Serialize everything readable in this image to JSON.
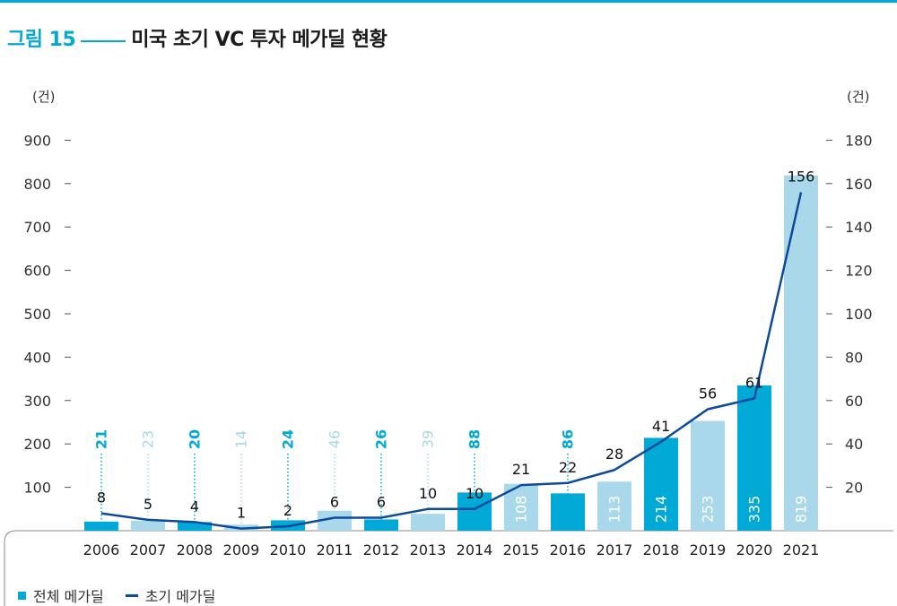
{
  "figure": {
    "label": "그림 15",
    "title": "미국 초기 VC 투자 메가딜 현황"
  },
  "colors": {
    "accent": "#00a9d6",
    "bar_dark": "#00a9d6",
    "bar_light": "#a8d8ea",
    "line": "#0d4a9a"
  },
  "legend": {
    "total_label": "전체 메가딜",
    "early_label": "초기 메가딜"
  },
  "chart_data": {
    "type": "bar+line",
    "categories": [
      "2006",
      "2007",
      "2008",
      "2009",
      "2010",
      "2011",
      "2012",
      "2013",
      "2014",
      "2015",
      "2016",
      "2017",
      "2018",
      "2019",
      "2020",
      "2021"
    ],
    "series": [
      {
        "name": "전체 메가딜",
        "axis": "left",
        "values": [
          21,
          23,
          20,
          14,
          24,
          46,
          26,
          39,
          88,
          108,
          86,
          113,
          214,
          253,
          335,
          819
        ],
        "shade": [
          "dark",
          "light",
          "dark",
          "light",
          "dark",
          "light",
          "dark",
          "light",
          "dark",
          "light",
          "dark",
          "light",
          "dark",
          "light",
          "dark",
          "light"
        ]
      },
      {
        "name": "초기 메가딜",
        "axis": "right",
        "values": [
          8,
          5,
          4,
          1,
          2,
          6,
          6,
          10,
          10,
          21,
          22,
          28,
          41,
          56,
          61,
          156
        ]
      }
    ],
    "y_left": {
      "unit": "(건)",
      "lim": [
        0,
        900
      ],
      "ticks": [
        100,
        200,
        300,
        400,
        500,
        600,
        700,
        800,
        900
      ]
    },
    "y_right": {
      "unit": "(건)",
      "lim": [
        0,
        180
      ],
      "ticks": [
        20,
        40,
        60,
        80,
        100,
        120,
        140,
        160,
        180
      ]
    },
    "legend_position": "bottom-left"
  }
}
